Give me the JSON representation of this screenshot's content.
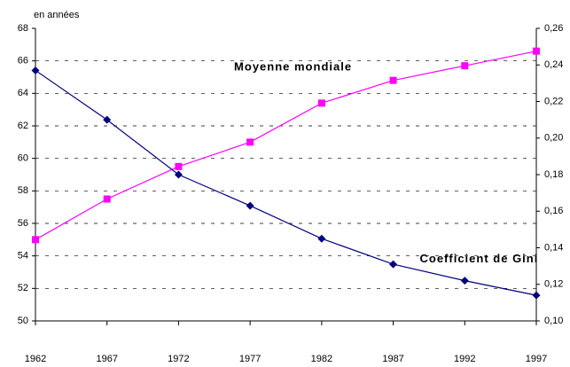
{
  "chart_data": {
    "type": "line",
    "y_label": "en années",
    "x": [
      1962,
      1967,
      1972,
      1977,
      1982,
      1987,
      1992,
      1997
    ],
    "xlim": [
      1962,
      1997
    ],
    "xticks": [
      1962,
      1967,
      1972,
      1977,
      1982,
      1987,
      1992,
      1997
    ],
    "ylim": [
      50,
      68
    ],
    "yticks": [
      50,
      52,
      54,
      56,
      58,
      60,
      62,
      64,
      66,
      68
    ],
    "y2lim": [
      0.1,
      0.26
    ],
    "y2ticks": [
      {
        "value": 0.1,
        "label": "0,10"
      },
      {
        "value": 0.12,
        "label": "0,12"
      },
      {
        "value": 0.14,
        "label": "0,14"
      },
      {
        "value": 0.16,
        "label": "0,16"
      },
      {
        "value": 0.18,
        "label": "0,18"
      },
      {
        "value": 0.2,
        "label": "0,20"
      },
      {
        "value": 0.22,
        "label": "0,22"
      },
      {
        "value": 0.24,
        "label": "0,24"
      },
      {
        "value": 0.26,
        "label": "0,26"
      }
    ],
    "grid": true,
    "series": [
      {
        "name": "Moyenne mondiale",
        "color": "#ff00ff",
        "marker": "square",
        "values": [
          55,
          57.5,
          59.5,
          61,
          63.4,
          64.8,
          65.7,
          66.6
        ]
      },
      {
        "name": "Coefficient de Gini",
        "color": "#000080",
        "marker": "diamond",
        "axis": "y2",
        "values": [
          0.237,
          0.21,
          0.18,
          0.163,
          0.145,
          0.131,
          0.122,
          0.114
        ]
      }
    ]
  }
}
